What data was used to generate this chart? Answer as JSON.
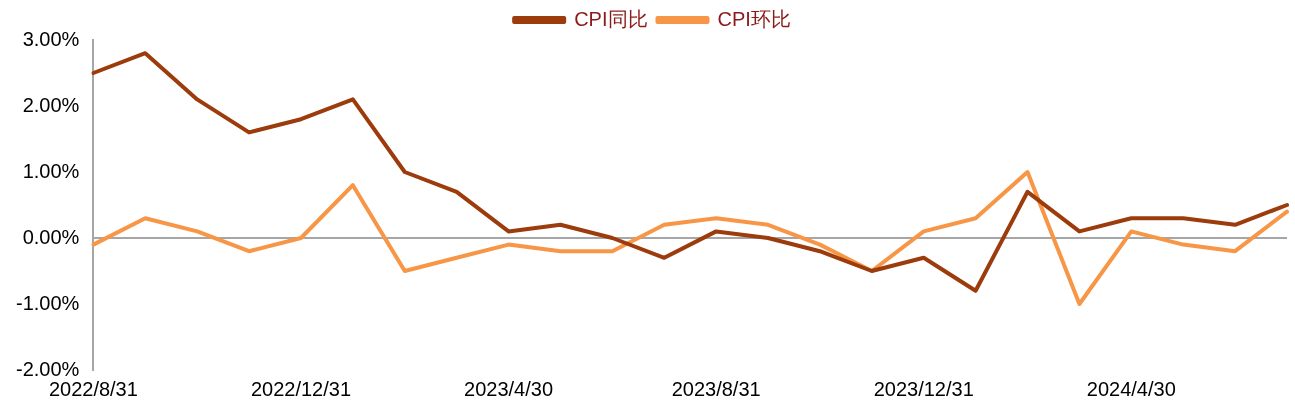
{
  "chart_data": {
    "type": "line",
    "categories": [
      "2022/8/31",
      null,
      null,
      null,
      "2022/12/31",
      null,
      null,
      null,
      "2023/4/30",
      null,
      null,
      null,
      "2023/8/31",
      null,
      null,
      null,
      "2023/12/31",
      null,
      null,
      null,
      "2024/4/30",
      null,
      null,
      null
    ],
    "series": [
      {
        "name": "CPI同比",
        "color": "#9c3b0b",
        "values": [
          2.5,
          2.8,
          2.1,
          1.6,
          1.8,
          2.1,
          1.0,
          0.7,
          0.1,
          0.2,
          0.0,
          -0.3,
          0.1,
          0.0,
          -0.2,
          -0.5,
          -0.3,
          -0.8,
          0.7,
          0.1,
          0.3,
          0.3,
          0.2,
          0.5
        ]
      },
      {
        "name": "CPI环比",
        "color": "#f79646",
        "values": [
          -0.1,
          0.3,
          0.1,
          -0.2,
          0.0,
          0.8,
          -0.5,
          -0.3,
          -0.1,
          -0.2,
          -0.2,
          0.2,
          0.3,
          0.2,
          -0.1,
          -0.5,
          0.1,
          0.3,
          1.0,
          -1.0,
          0.1,
          -0.1,
          -0.2,
          0.4
        ]
      }
    ],
    "ylim": [
      -2,
      3
    ],
    "yticks": [
      {
        "value": -2,
        "label": "-2.00%"
      },
      {
        "value": -1,
        "label": "-1.00%"
      },
      {
        "value": 0,
        "label": "0.00%"
      },
      {
        "value": 1,
        "label": "1.00%"
      },
      {
        "value": 2,
        "label": "2.00%"
      },
      {
        "value": 3,
        "label": "3.00%"
      }
    ],
    "ref_lines": [
      {
        "axis": "y",
        "value": 0,
        "color": "#a6a6a6"
      }
    ],
    "legend": "top",
    "grid": false,
    "marker": "none",
    "line_style": "solid"
  }
}
